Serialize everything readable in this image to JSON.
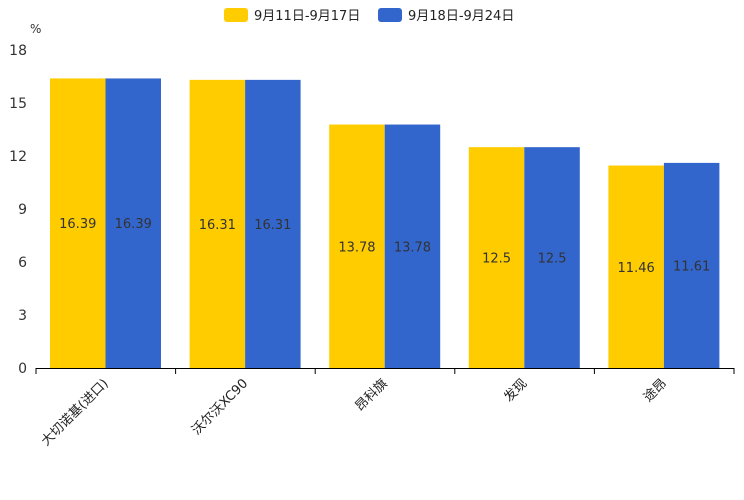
{
  "chart_data": {
    "type": "bar",
    "title": "",
    "ylabel": "%",
    "xlabel": "",
    "ylim": [
      0,
      18
    ],
    "yticks": [
      0,
      3,
      6,
      9,
      12,
      15,
      18
    ],
    "categories": [
      "大切诺基(进口)",
      "沃尔沃XC90",
      "昂科旗",
      "发现",
      "途昂"
    ],
    "series": [
      {
        "name": "9月11日-9月17日",
        "color": "#ffcc00",
        "values": [
          16.39,
          16.31,
          13.78,
          12.5,
          11.46
        ]
      },
      {
        "name": "9月18日-9月24日",
        "color": "#3366cc",
        "values": [
          16.39,
          16.31,
          13.78,
          12.5,
          11.61
        ]
      }
    ],
    "legend": "top-center",
    "grid": false
  }
}
